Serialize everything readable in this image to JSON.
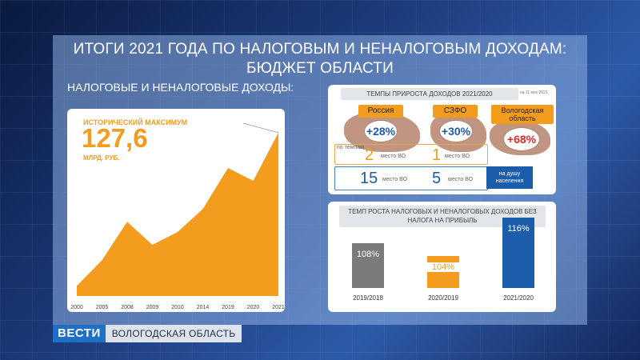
{
  "title": "ИТОГИ 2021 ГОДА ПО НАЛОГОВЫМ И НЕНАЛОГОВЫМ ДОХОДАМ: БЮДЖЕТ ОБЛАСТИ",
  "left_label": "НАЛОГОВЫЕ И НЕНАЛОГОВЫЕ ДОХОДЫ:",
  "historical": {
    "label": "ИСТОРИЧЕСКИЙ МАКСИМУМ",
    "value": "127,6",
    "unit": "МЛРД. РУБ."
  },
  "chart_data": [
    {
      "type": "area",
      "categories": [
        "2000",
        "2005",
        "2008",
        "2009",
        "2010",
        "2014",
        "2019",
        "2020",
        "2021"
      ],
      "values": [
        8,
        28,
        58,
        40,
        50,
        68,
        100,
        90,
        127.6
      ],
      "ylim": [
        0,
        140
      ],
      "color": "#f39c1e"
    },
    {
      "type": "bar",
      "title": "ТЕМП РОСТА НАЛОГОВЫХ И НЕНАЛОГОВЫХ ДОХОДОВ БЕЗ НАЛОГА НА ПРИБЫЛЬ",
      "categories": [
        "2019/2018",
        "2020/2019",
        "2021/2020"
      ],
      "values": [
        108,
        104,
        116
      ],
      "labels": [
        "108%",
        "104%",
        "116%"
      ],
      "colors": [
        "#7b7b7b",
        "#f39c1e",
        "#1b5cab"
      ]
    }
  ],
  "panel1": {
    "heading": "ТЕМПЫ ПРИРОСТА ДОХОДОВ 2021/2020",
    "asof": "на 11 мес 2021",
    "regions": [
      {
        "name": "Россия",
        "growth": "+28%"
      },
      {
        "name": "СЗФО",
        "growth": "+30%"
      },
      {
        "name": "Вологодская область",
        "growth": "+68%"
      }
    ],
    "rank_tempo_label": "по темпам",
    "ranks_tempo": [
      {
        "num": "2",
        "txt": "место ВО"
      },
      {
        "num": "1",
        "txt": "место ВО"
      }
    ],
    "ranks_percap": [
      {
        "num": "15",
        "txt": "место ВО"
      },
      {
        "num": "5",
        "txt": "место ВО"
      }
    ],
    "percap_label": "на душу населения"
  },
  "bottom": {
    "logo": "ВЕСТИ",
    "region": "ВОЛОГОДСКАЯ ОБЛАСТЬ"
  },
  "colors": {
    "orange": "#f39c1e",
    "blue": "#1b5cab",
    "red": "#e02b2b",
    "grey": "#7b7b7b"
  }
}
